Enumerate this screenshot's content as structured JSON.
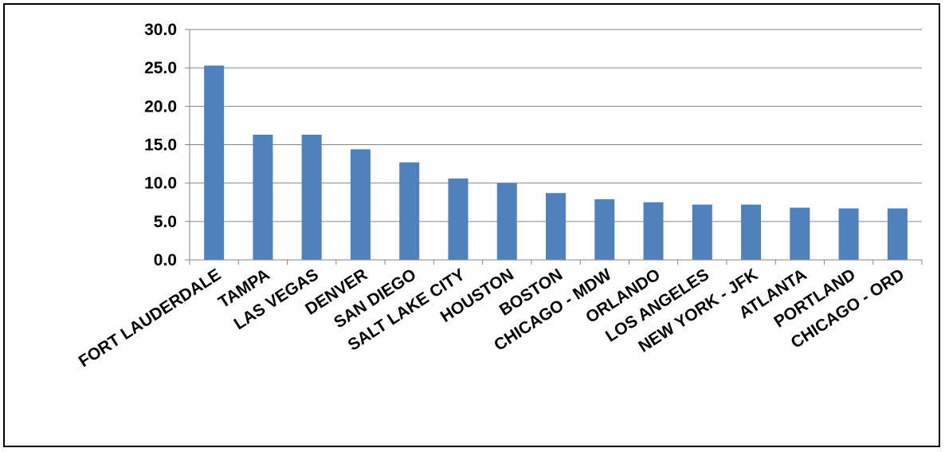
{
  "chart_data": {
    "type": "bar",
    "title": "",
    "xlabel": "",
    "ylabel": "",
    "categories": [
      "FORT LAUDERDALE",
      "TAMPA",
      "LAS VEGAS",
      "DENVER",
      "SAN DIEGO",
      "SALT LAKE CITY",
      "HOUSTON",
      "BOSTON",
      "CHICAGO - MDW",
      "ORLANDO",
      "LOS ANGELES",
      "NEW YORK - JFK",
      "ATLANTA",
      "PORTLAND",
      "CHICAGO - ORD"
    ],
    "values": [
      25.3,
      16.3,
      16.3,
      14.4,
      12.7,
      10.6,
      10.0,
      8.7,
      7.9,
      7.5,
      7.2,
      7.2,
      6.8,
      6.7,
      6.7
    ],
    "ylim": [
      0,
      30
    ],
    "yticks": [
      "0.0",
      "5.0",
      "10.0",
      "15.0",
      "20.0",
      "25.0",
      "30.0"
    ],
    "grid": true,
    "legend": "none",
    "bar_color": "#4F81BD",
    "grid_color": "#868686"
  }
}
